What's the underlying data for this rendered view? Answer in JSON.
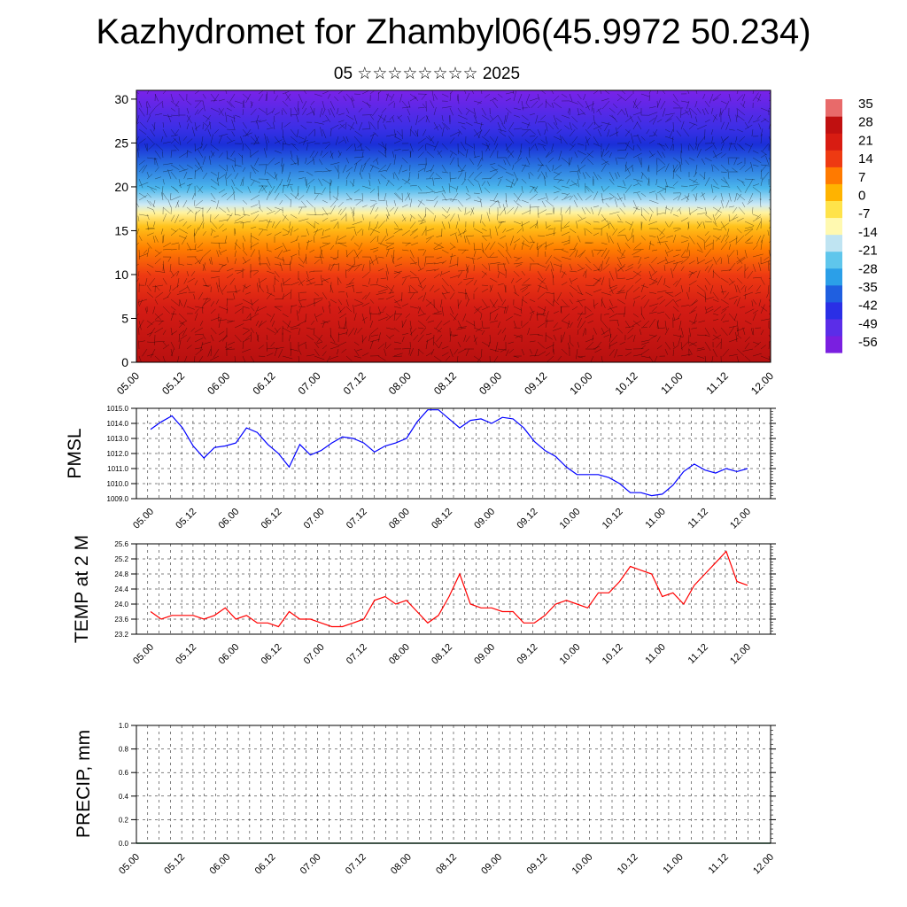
{
  "header": {
    "title": "Kazhydromet for Zhambyl06(45.9972 50.234)",
    "subtitle": "05 ☆☆☆☆☆☆☆☆ 2025"
  },
  "colors": {
    "pmsl_line": "#0000ff",
    "temp_line": "#ff0000",
    "colorbar": [
      "#7a1fe0",
      "#5b2de8",
      "#2a2fe6",
      "#1f5fe0",
      "#2b9fe8",
      "#5fc6ec",
      "#bfe4f2",
      "#fff9b0",
      "#ffe34a",
      "#ffb300",
      "#ff7a00",
      "#ee3a12",
      "#d81c12",
      "#c01010",
      "#e86a6a"
    ]
  },
  "chart_data": [
    {
      "type": "heatmap",
      "description_units": "temperature vs height with wind vectors",
      "x_ticks": [
        "05.00",
        "05.12",
        "06.00",
        "06.12",
        "07.00",
        "07.12",
        "08.00",
        "08.12",
        "09.00",
        "09.12",
        "10.00",
        "10.12",
        "11.00",
        "11.12",
        "12.00"
      ],
      "y_ticks": [
        "0",
        "5",
        "10",
        "15",
        "20",
        "25",
        "30"
      ],
      "ylim": [
        0,
        31
      ],
      "colorbar_labels": [
        "35",
        "28",
        "21",
        "14",
        "7",
        "0",
        "-7",
        "-14",
        "-21",
        "-28",
        "-35",
        "-42",
        "-49",
        "-56"
      ]
    },
    {
      "type": "line",
      "ylabel": "PMSL",
      "ylim": [
        1009.0,
        1015.0
      ],
      "y_ticks": [
        "1015.0",
        "1014.0",
        "1013.0",
        "1012.0",
        "1011.0",
        "1010.0",
        "1009.0"
      ],
      "x_ticks": [
        "05.00",
        "05.12",
        "06.00",
        "06.12",
        "07.00",
        "07.12",
        "08.00",
        "08.12",
        "09.00",
        "09.12",
        "10.00",
        "10.12",
        "11.00",
        "11.12",
        "12.00"
      ],
      "series": [
        {
          "x": [
            0,
            3,
            6,
            9,
            12,
            15,
            18,
            21,
            24,
            27,
            30,
            33,
            36,
            39,
            42,
            45,
            48,
            51,
            54,
            57,
            60,
            63,
            66,
            69,
            72,
            75,
            78,
            81,
            84,
            87,
            90,
            93,
            96,
            99,
            102,
            105,
            108,
            111,
            114,
            117,
            120,
            123,
            126,
            129,
            132,
            135,
            138,
            141,
            144,
            147,
            150,
            153,
            156,
            159,
            162,
            165,
            168
          ],
          "values": [
            1013.6,
            1014.1,
            1014.5,
            1013.7,
            1012.5,
            1011.7,
            1012.4,
            1012.5,
            1012.7,
            1013.7,
            1013.4,
            1012.6,
            1012.0,
            1011.1,
            1012.6,
            1011.9,
            1012.2,
            1012.7,
            1013.1,
            1013.0,
            1012.7,
            1012.1,
            1012.5,
            1012.7,
            1013.0,
            1014.1,
            1014.9,
            1014.9,
            1014.3,
            1013.7,
            1014.2,
            1014.3,
            1014.0,
            1014.4,
            1014.3,
            1013.7,
            1012.8,
            1012.2,
            1011.8,
            1011.1,
            1010.6,
            1010.6,
            1010.6,
            1010.4,
            1010.0,
            1009.4,
            1009.4,
            1009.2,
            1009.3,
            1009.9,
            1010.8,
            1011.3,
            1010.9,
            1010.7,
            1011.0,
            1010.8,
            1011.0
          ]
        }
      ]
    },
    {
      "type": "line",
      "ylabel": "TEMP at 2 M",
      "ylim": [
        23.2,
        25.6
      ],
      "y_ticks": [
        "25.6",
        "25.2",
        "24.8",
        "24.4",
        "24.0",
        "23.6",
        "23.2"
      ],
      "x_ticks": [
        "05.00",
        "05.12",
        "06.00",
        "06.12",
        "07.00",
        "07.12",
        "08.00",
        "08.12",
        "09.00",
        "09.12",
        "10.00",
        "10.12",
        "11.00",
        "11.12",
        "12.00"
      ],
      "series": [
        {
          "x": [
            0,
            3,
            6,
            9,
            12,
            15,
            18,
            21,
            24,
            27,
            30,
            33,
            36,
            39,
            42,
            45,
            48,
            51,
            54,
            57,
            60,
            63,
            66,
            69,
            72,
            75,
            78,
            81,
            84,
            87,
            90,
            93,
            96,
            99,
            102,
            105,
            108,
            111,
            114,
            117,
            120,
            123,
            126,
            129,
            132,
            135,
            138,
            141,
            144,
            147,
            150,
            153,
            156,
            159,
            162,
            165,
            168
          ],
          "values": [
            23.8,
            23.6,
            23.7,
            23.7,
            23.7,
            23.6,
            23.7,
            23.9,
            23.6,
            23.7,
            23.5,
            23.5,
            23.4,
            23.8,
            23.6,
            23.6,
            23.5,
            23.4,
            23.4,
            23.5,
            23.6,
            24.1,
            24.2,
            24.0,
            24.1,
            23.8,
            23.5,
            23.7,
            24.2,
            24.8,
            24.0,
            23.9,
            23.9,
            23.8,
            23.8,
            23.5,
            23.5,
            23.7,
            24.0,
            24.1,
            24.0,
            23.9,
            24.3,
            24.3,
            24.6,
            25.0,
            24.9,
            24.8,
            24.2,
            24.3,
            24.0,
            24.5,
            24.8,
            25.1,
            25.4,
            24.6,
            24.5
          ]
        }
      ]
    },
    {
      "type": "bar",
      "ylabel": "PRECIP, mm",
      "ylim": [
        0.0,
        1.0
      ],
      "y_ticks": [
        "1.0",
        "0.8",
        "0.6",
        "0.4",
        "0.2",
        "0.0"
      ],
      "x_ticks": [
        "05.00",
        "05.12",
        "06.00",
        "06.12",
        "07.00",
        "07.12",
        "08.00",
        "08.12",
        "09.00",
        "09.12",
        "10.00",
        "10.12",
        "11.00",
        "11.12",
        "12.00"
      ],
      "values": []
    }
  ]
}
